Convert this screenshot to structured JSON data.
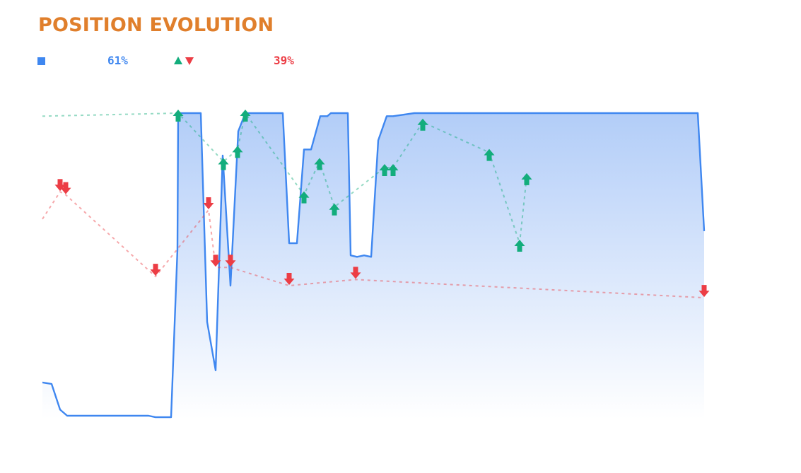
{
  "title": "POSITION EVOLUTION",
  "legend": {
    "position_pct": "61%",
    "signal_pct": "39%"
  },
  "colors": {
    "title": "#e07f2c",
    "position": "#3f87f0",
    "buy": "#13ad7c",
    "sell": "#ec3d45"
  },
  "chart_data": {
    "type": "area",
    "title": "POSITION EVOLUTION",
    "xlabel": "",
    "ylabel": "",
    "xlim": [
      0,
      936
    ],
    "ylim": [
      0,
      100
    ],
    "grid": false,
    "legend_position": "top-left",
    "position_series": {
      "x": [
        0,
        13,
        25,
        35,
        50,
        80,
        115,
        150,
        160,
        182,
        191,
        192,
        224,
        233,
        245,
        255,
        266,
        277,
        287,
        340,
        349,
        360,
        370,
        380,
        393,
        403,
        408,
        432,
        436,
        445,
        455,
        465,
        475,
        487,
        496,
        526,
        539,
        560,
        680,
        760,
        927,
        936
      ],
      "y": [
        11,
        10.5,
        2,
        0,
        0,
        0,
        0,
        0,
        -0.5,
        -0.5,
        55,
        100,
        100,
        31,
        15,
        86,
        43,
        94,
        100,
        100,
        57,
        57,
        88,
        88,
        99,
        99,
        100,
        100,
        53,
        52.5,
        53,
        52.5,
        91,
        99,
        99,
        100,
        100,
        100,
        100,
        100,
        100,
        61
      ]
    },
    "buy_signals": {
      "x": [
        0,
        192,
        256,
        276,
        287,
        370,
        392,
        413,
        484,
        496,
        538,
        632,
        675,
        685
      ],
      "y": [
        99,
        100,
        84,
        88,
        100,
        73,
        84,
        69,
        82,
        82,
        97,
        87,
        57,
        79
      ]
    },
    "sell_signals": {
      "x": [
        0,
        25,
        33,
        160,
        235,
        245,
        266,
        349,
        443,
        936
      ],
      "y": [
        65,
        74,
        73,
        46,
        68,
        49,
        49,
        43,
        45,
        39
      ]
    }
  }
}
